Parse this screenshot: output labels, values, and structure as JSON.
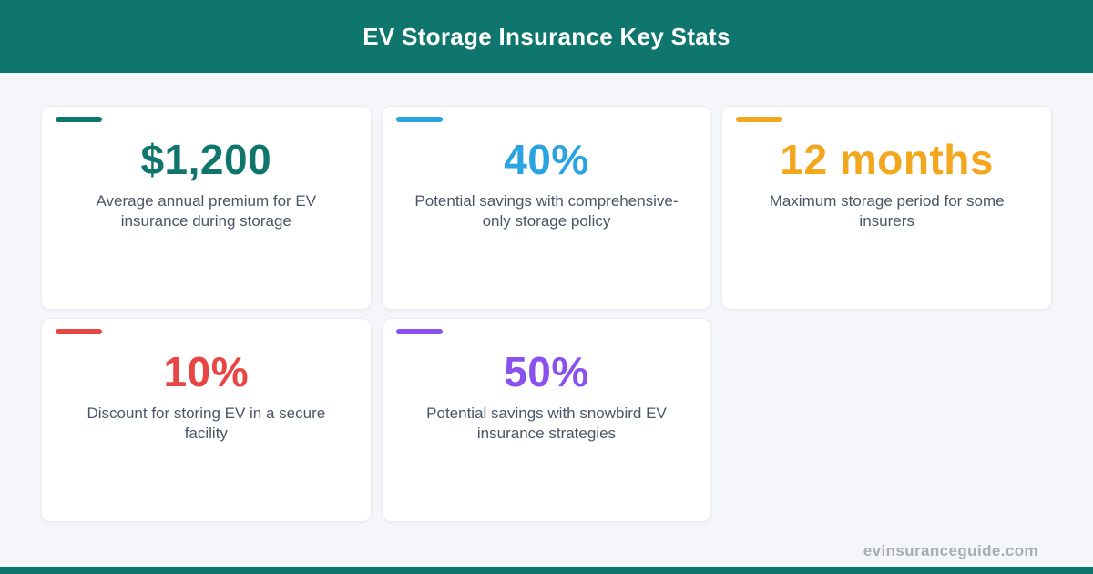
{
  "page": {
    "background": "#F5F6FA",
    "card_background": "#FFFFFF",
    "card_border": "#EAECF2"
  },
  "header": {
    "title": "EV Storage Insurance Key Stats",
    "background": "#0E766C",
    "text_color": "#FFFFFF"
  },
  "cards": [
    {
      "value": "$1,200",
      "description": "Average annual premium for EV insurance during storage",
      "color": "#0E766C"
    },
    {
      "value": "40%",
      "description": "Potential savings with comprehensive-only storage policy",
      "color": "#2AA3E1"
    },
    {
      "value": "12 months",
      "description": "Maximum storage period for some insurers",
      "color": "#F3A71D"
    },
    {
      "value": "10%",
      "description": "Discount for storing EV in a secure facility",
      "color": "#E84545"
    },
    {
      "value": "50%",
      "description": "Potential savings with snowbird EV insurance strategies",
      "color": "#8952EE"
    }
  ],
  "footer": {
    "website": "evinsuranceguide.com",
    "bar_color": "#0E766C",
    "text_color": "#A6ADBA"
  },
  "chart_data": {
    "type": "table",
    "title": "EV Storage Insurance Key Stats",
    "stats": [
      {
        "value": "$1,200",
        "label": "Average annual premium for EV insurance during storage"
      },
      {
        "value": "40%",
        "label": "Potential savings with comprehensive-only storage policy"
      },
      {
        "value": "12 months",
        "label": "Maximum storage period for some insurers"
      },
      {
        "value": "10%",
        "label": "Discount for storing EV in a secure facility"
      },
      {
        "value": "50%",
        "label": "Potential savings with snowbird EV insurance strategies"
      }
    ],
    "source": "evinsuranceguide.com"
  }
}
